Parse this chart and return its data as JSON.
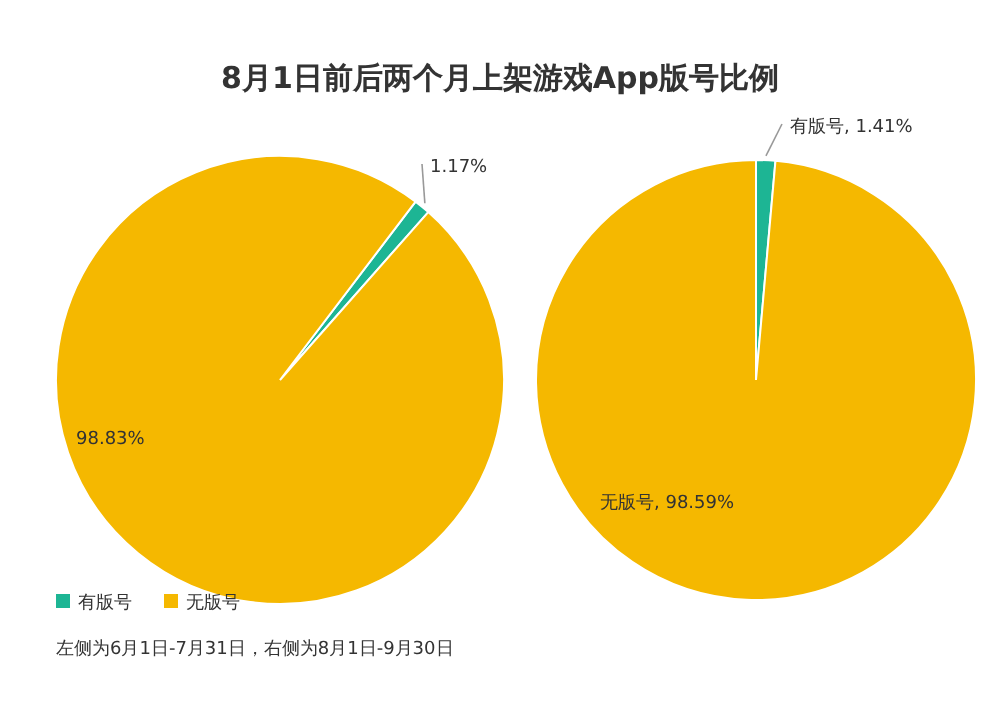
{
  "chart_data": [
    {
      "type": "pie",
      "title": "8月1日前后两个月上架游戏App版号比例",
      "categories": [
        "有版号",
        "无版号"
      ],
      "values": [
        1.17,
        98.83
      ],
      "colors": [
        "#1db594",
        "#f5b800"
      ],
      "value_labels": [
        "1.17%",
        "98.83%"
      ],
      "legend": "bottom left"
    },
    {
      "type": "pie",
      "categories": [
        "有版号",
        "无版号"
      ],
      "values": [
        1.41,
        98.59
      ],
      "colors": [
        "#1db594",
        "#f5b800"
      ],
      "value_labels": [
        ", 1.41%",
        ", 98.59%"
      ],
      "annotations": [
        "左侧为6月1日-7月31日，右侧为8月1日-9月30日"
      ]
    }
  ]
}
